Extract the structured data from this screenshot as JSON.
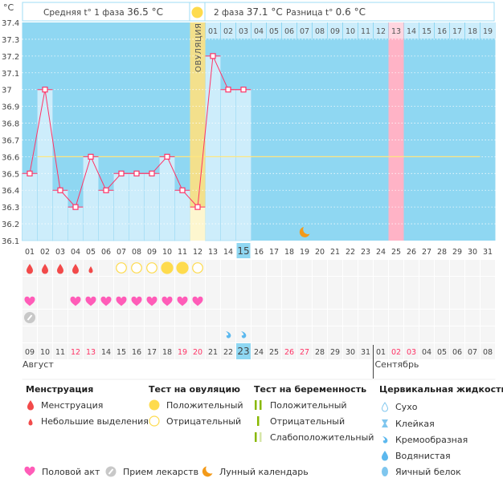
{
  "header": {
    "unit": "°C",
    "phase1_label": "Средняя t° 1 фаза",
    "phase1_value": "36.5 °C",
    "phase2_label": "2 фаза",
    "phase2_value": "37.1 °C",
    "diff_label": "Разница t°",
    "diff_value": "0.6 °C",
    "ovulation_label": "ОВУЛЯЦИЯ"
  },
  "colors": {
    "plot_bg": "#8fd7f2",
    "bar": "#cdedfb",
    "line": "#ff3366",
    "coverline": "#ffe680",
    "ovulation": "#f3e08c",
    "ovulation_light": "#fdf6cf",
    "highlight_day": "#ffb3c6",
    "today": "#8fd7f2",
    "weekend": "#ff3366"
  },
  "chart_data": {
    "type": "line",
    "xlabel": "",
    "ylabel": "°C",
    "ylim": [
      36.1,
      37.4
    ],
    "yticks": [
      "37.4",
      "37.3",
      "37.2",
      "37.1",
      "37",
      "36.9",
      "36.8",
      "36.7",
      "36.6",
      "36.5",
      "36.4",
      "36.3",
      "36.2",
      "36.1"
    ],
    "cycle_days": [
      "01",
      "02",
      "03",
      "04",
      "05",
      "06",
      "07",
      "08",
      "09",
      "10",
      "11",
      "12",
      "13",
      "14",
      "15",
      "16",
      "17",
      "18",
      "19",
      "20",
      "21",
      "22",
      "23",
      "24",
      "25",
      "26",
      "27",
      "28",
      "29",
      "30",
      "31"
    ],
    "temperatures": [
      36.5,
      37.0,
      36.4,
      36.3,
      36.6,
      36.4,
      36.5,
      36.5,
      36.5,
      36.6,
      36.4,
      36.3,
      37.2,
      37.0,
      37.0
    ],
    "coverline": 36.6,
    "ovulation_day": 12,
    "today_cycle_day": 15,
    "phase2_start_day": 13,
    "phase2_days": [
      "01",
      "02",
      "03",
      "04",
      "05",
      "06",
      "07",
      "08",
      "09",
      "10",
      "11",
      "12",
      "13",
      "14",
      "15",
      "16",
      "17",
      "18",
      "19"
    ],
    "highlighted_phase2_day": "13",
    "moon_day": 19,
    "grid": true
  },
  "rows": {
    "menstruation": [
      "heavy",
      "heavy",
      "heavy",
      "heavy",
      "light",
      "",
      "",
      "",
      "",
      "",
      "",
      "",
      "",
      "",
      "",
      "",
      "",
      "",
      "",
      "",
      "",
      "",
      "",
      "",
      "",
      "",
      "",
      "",
      "",
      "",
      ""
    ],
    "ovulation_test": [
      "",
      "",
      "",
      "",
      "",
      "",
      "negative",
      "negative",
      "negative",
      "positive",
      "positive",
      "negative",
      "",
      "",
      "",
      "",
      "",
      "",
      "",
      "",
      "",
      "",
      "",
      "",
      "",
      "",
      "",
      "",
      "",
      "",
      ""
    ],
    "pregnancy_test": [
      "",
      "",
      "",
      "",
      "",
      "",
      "",
      "",
      "",
      "",
      "",
      "",
      "",
      "",
      "",
      "",
      "",
      "",
      "",
      "",
      "",
      "",
      "",
      "",
      "",
      "",
      "",
      "",
      "",
      "",
      ""
    ],
    "intercourse": [
      true,
      false,
      false,
      true,
      true,
      true,
      true,
      true,
      true,
      true,
      true,
      true,
      false,
      false,
      false,
      false,
      false,
      false,
      false,
      false,
      false,
      false,
      false,
      false,
      false,
      false,
      false,
      false,
      false,
      false,
      false
    ],
    "medication": [
      true,
      false,
      false,
      false,
      false,
      false,
      false,
      false,
      false,
      false,
      false,
      false,
      false,
      false,
      false,
      false,
      false,
      false,
      false,
      false,
      false,
      false,
      false,
      false,
      false,
      false,
      false,
      false,
      false,
      false,
      false
    ],
    "cervical_fluid": [
      "",
      "",
      "",
      "",
      "",
      "",
      "",
      "",
      "",
      "",
      "",
      "",
      "",
      "creamy",
      "creamy",
      "",
      "",
      "",
      "",
      "",
      "",
      "",
      "",
      "",
      "",
      "",
      "",
      "",
      "",
      "",
      ""
    ]
  },
  "calendar": {
    "dates": [
      "09",
      "10",
      "11",
      "12",
      "13",
      "14",
      "15",
      "16",
      "17",
      "18",
      "19",
      "20",
      "21",
      "22",
      "23",
      "24",
      "25",
      "26",
      "27",
      "28",
      "29",
      "30",
      "31",
      "01",
      "02",
      "03",
      "04",
      "05",
      "06",
      "07",
      "08"
    ],
    "weekend": [
      false,
      false,
      false,
      true,
      true,
      false,
      false,
      false,
      false,
      false,
      true,
      true,
      false,
      false,
      false,
      false,
      false,
      true,
      true,
      false,
      false,
      false,
      false,
      false,
      true,
      true,
      false,
      false,
      false,
      false,
      false
    ],
    "today_index": 14,
    "month1": "Август",
    "month2": "Сентябрь"
  },
  "legend": {
    "menstruation": {
      "title": "Менструация",
      "items": [
        "Менструация",
        "Небольшие выделения"
      ]
    },
    "ovulation_test": {
      "title": "Тест на овуляцию",
      "items": [
        "Положительный",
        "Отрицательный"
      ]
    },
    "pregnancy_test": {
      "title": "Тест на беременность",
      "items": [
        "Положительный",
        "Отрицательный",
        "Слабоположительный"
      ]
    },
    "cervical_fluid": {
      "title": "Цервикальная жидкость",
      "items": [
        "Сухо",
        "Клейкая",
        "Кремообразная",
        "Водянистая",
        "Яичный белок"
      ]
    },
    "other": [
      "Половой акт",
      "Прием лекарств",
      "Лунный календарь"
    ]
  }
}
